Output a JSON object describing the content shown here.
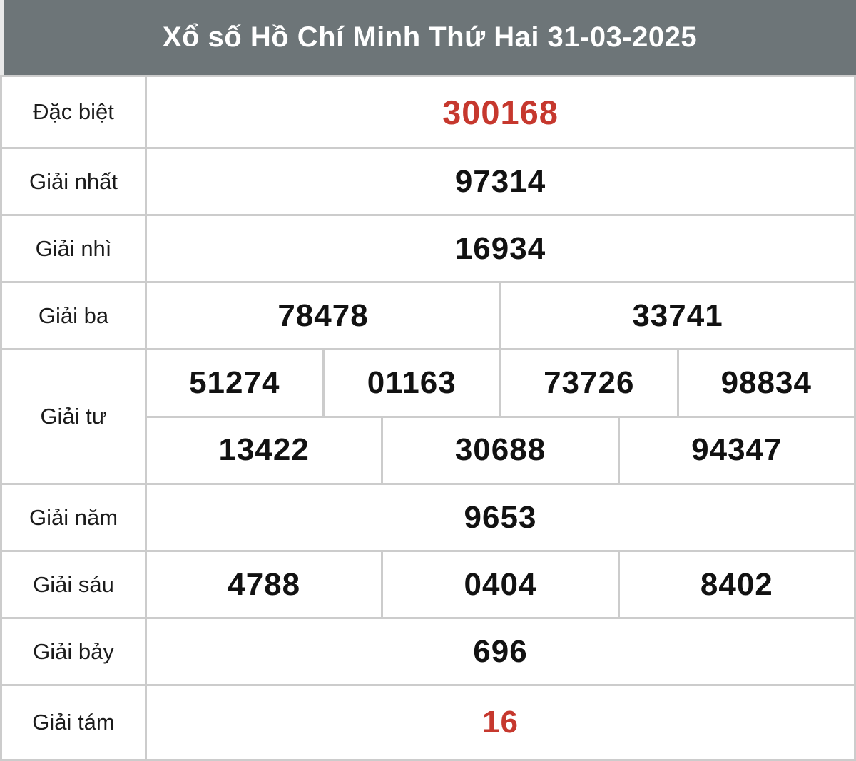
{
  "header": {
    "title": "Xổ số Hồ Chí Minh Thứ Hai 31-03-2025",
    "province": "Hồ Chí Minh",
    "weekday": "Thứ Hai",
    "date": "31-03-2025"
  },
  "colors": {
    "header_bg": "#6d7578",
    "header_text": "#ffffff",
    "border": "#cccccc",
    "cell_bg": "#ffffff",
    "label_text": "#1b1b1b",
    "number_text": "#121212",
    "highlight": "#c6382e"
  },
  "table": {
    "rows": [
      {
        "label": "Đặc biệt",
        "values": [
          "300168"
        ],
        "highlighted": true
      },
      {
        "label": "Giải nhất",
        "values": [
          "97314"
        ]
      },
      {
        "label": "Giải nhì",
        "values": [
          "16934"
        ]
      },
      {
        "label": "Giải ba",
        "values": [
          "78478",
          "33741"
        ]
      },
      {
        "label": "Giải tư",
        "line1": [
          "51274",
          "01163",
          "73726",
          "98834"
        ],
        "line2": [
          "13422",
          "30688",
          "94347"
        ]
      },
      {
        "label": "Giải năm",
        "values": [
          "9653"
        ]
      },
      {
        "label": "Giải sáu",
        "values": [
          "4788",
          "0404",
          "8402"
        ]
      },
      {
        "label": "Giải bảy",
        "values": [
          "696"
        ]
      },
      {
        "label": "Giải tám",
        "values": [
          "16"
        ],
        "highlighted": true
      }
    ]
  }
}
